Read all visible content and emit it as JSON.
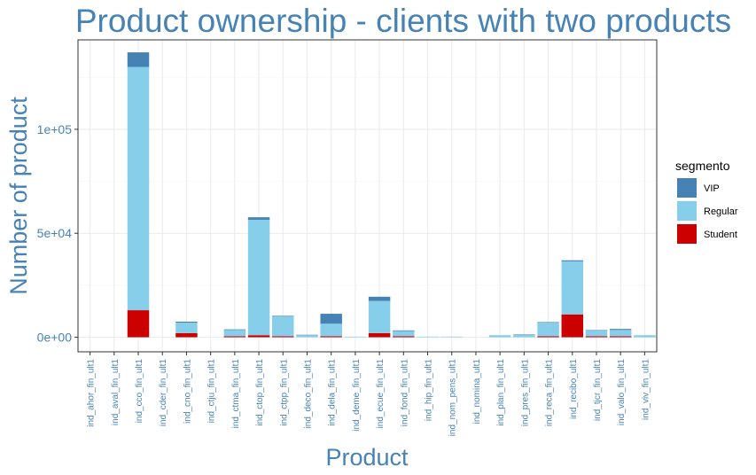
{
  "chart_data": {
    "type": "bar",
    "stacked": true,
    "title": "Product ownership - clients with two products",
    "xlabel": "Product",
    "ylabel": "Number of product",
    "ylim": [
      -7000,
      143000
    ],
    "yticks": [
      0,
      50000,
      100000
    ],
    "ytick_labels": [
      "0e+00",
      "5e+04",
      "1e+05"
    ],
    "grid": true,
    "legend": {
      "title": "segmento",
      "position": "right"
    },
    "categories": [
      "ind_ahor_fin_ult1",
      "ind_aval_fin_ult1",
      "ind_cco_fin_ult1",
      "ind_cder_fin_ult1",
      "ind_cno_fin_ult1",
      "ind_ctju_fin_ult1",
      "ind_ctma_fin_ult1",
      "ind_ctop_fin_ult1",
      "ind_ctpp_fin_ult1",
      "ind_deco_fin_ult1",
      "ind_dela_fin_ult1",
      "ind_deme_fin_ult1",
      "ind_ecue_fin_ult1",
      "ind_fond_fin_ult1",
      "ind_hip_fin_ult1",
      "ind_nom_pens_ult1",
      "ind_nomina_ult1",
      "ind_plan_fin_ult1",
      "ind_pres_fin_ult1",
      "ind_reca_fin_ult1",
      "ind_recibo_ult1",
      "ind_tjcr_fin_ult1",
      "ind_valo_fin_ult1",
      "ind_viv_fin_ult1"
    ],
    "series": [
      {
        "name": "Student",
        "color": "#CC0000",
        "values": [
          0,
          0,
          13000,
          0,
          2000,
          0,
          500,
          1000,
          500,
          0,
          500,
          0,
          2000,
          500,
          0,
          0,
          0,
          0,
          0,
          500,
          11000,
          500,
          500,
          0
        ]
      },
      {
        "name": "Regular",
        "color": "#87CEEB",
        "values": [
          0,
          0,
          117000,
          0,
          5000,
          0,
          3000,
          55500,
          9500,
          1000,
          6000,
          300,
          15500,
          2500,
          300,
          300,
          0,
          1000,
          1200,
          6500,
          25500,
          2800,
          3000,
          1000
        ]
      },
      {
        "name": "VIP",
        "color": "#4682B4",
        "values": [
          0,
          0,
          7000,
          0,
          500,
          0,
          300,
          1200,
          300,
          200,
          4800,
          0,
          2000,
          300,
          0,
          0,
          0,
          0,
          200,
          300,
          500,
          200,
          500,
          0
        ]
      }
    ]
  }
}
